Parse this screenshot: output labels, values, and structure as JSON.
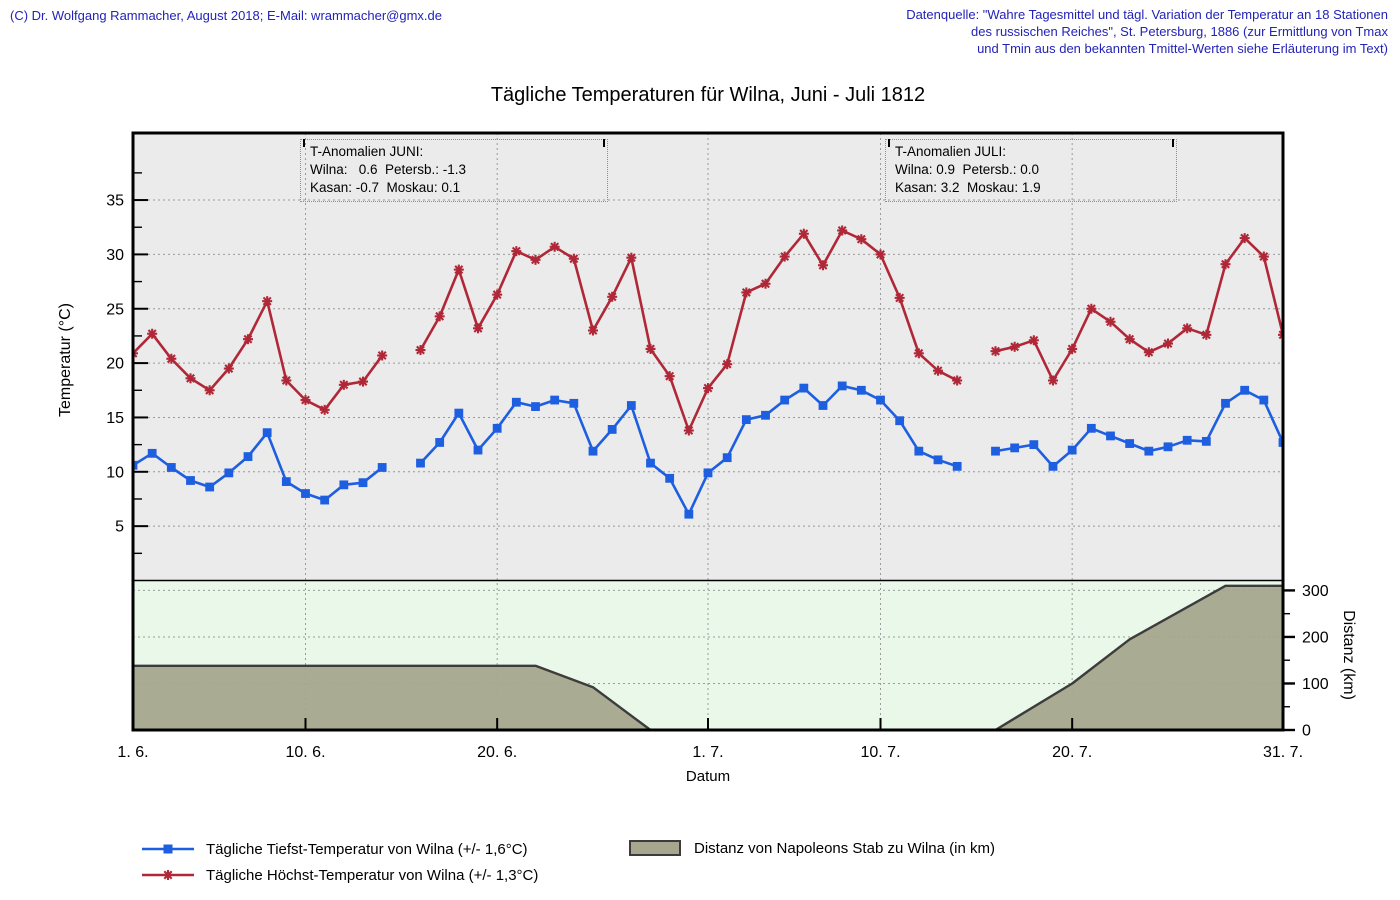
{
  "header": {
    "left": "(C) Dr. Wolfgang Rammacher, August 2018;  E-Mail: wrammacher@gmx.de",
    "right_lines": [
      "Datenquelle: \"Wahre Tagesmittel und tägl. Variation der Temperatur an 18 Stationen",
      "des russischen Reiches\", St. Petersburg, 1886 (zur Ermittlung von Tmax",
      "und Tmin aus den bekannten Tmittel-Werten siehe Erläuterung im Text)"
    ]
  },
  "colors": {
    "header_text": "#2323b8",
    "plot_bg": "#ebebeb",
    "dist_bg": "#e9f8e9",
    "grid": "#9a9a9a",
    "frame": "#000000",
    "area_edge": "#3c3c3c"
  },
  "annotations": {
    "june": {
      "lines": [
        "T-Anomalien JUNI:",
        "Wilna:   0.6  Petersb.: -1.3",
        "Kasan: -0.7  Moskau: 0.1"
      ]
    },
    "july": {
      "lines": [
        "T-Anomalien JULI:",
        "Wilna: 0.9  Petersb.: 0.0",
        "Kasan: 3.2  Moskau: 1.9"
      ]
    }
  },
  "legend": {
    "tmin": "Tägliche Tiefst-Temperatur von Wilna (+/- 1,6°C)",
    "tmax": "Tägliche Höchst-Temperatur von Wilna (+/- 1,3°C)",
    "dist": "Distanz von Napoleons Stab zu Wilna (in km)"
  },
  "chart_data": {
    "type": "line",
    "title": "Tägliche Temperaturen für Wilna, Juni - Juli 1812",
    "xlabel": "Datum",
    "ylabel": "Temperatur (°C)",
    "y2label": "Distanz (km)",
    "x_unit": "day index, 0 = 1 June 1812, 60 = 31 July 1812",
    "x_ticks": [
      {
        "day": 0,
        "label": "1. 6."
      },
      {
        "day": 9,
        "label": "10. 6."
      },
      {
        "day": 19,
        "label": "20. 6."
      },
      {
        "day": 30,
        "label": "1. 7."
      },
      {
        "day": 39,
        "label": "10. 7."
      },
      {
        "day": 49,
        "label": "20. 7."
      },
      {
        "day": 60,
        "label": "31. 7."
      }
    ],
    "y_ticks": [
      5,
      10,
      15,
      20,
      25,
      30,
      35
    ],
    "y2_ticks": [
      0,
      100,
      200,
      300
    ],
    "ylim": [
      0,
      41.2
    ],
    "y2lim": [
      0,
      321
    ],
    "grid": true,
    "missing_days": [
      "15. 6.",
      "15. 7."
    ],
    "series": [
      {
        "id": "tmin",
        "name": "Tägliche Tiefst-Temperatur von Wilna (+/- 1,6°C)",
        "axis": "y1",
        "color": "#1e5ee0",
        "marker": "square",
        "points": [
          [
            0,
            10.6
          ],
          [
            1,
            11.7
          ],
          [
            2,
            10.4
          ],
          [
            3,
            9.2
          ],
          [
            4,
            8.6
          ],
          [
            5,
            9.9
          ],
          [
            6,
            11.4
          ],
          [
            7,
            13.6
          ],
          [
            8,
            9.1
          ],
          [
            9,
            8.0
          ],
          [
            10,
            7.4
          ],
          [
            11,
            8.8
          ],
          [
            12,
            9.0
          ],
          [
            13,
            10.4
          ],
          [
            15,
            10.8
          ],
          [
            16,
            12.7
          ],
          [
            17,
            15.4
          ],
          [
            18,
            12.0
          ],
          [
            19,
            14.0
          ],
          [
            20,
            16.4
          ],
          [
            21,
            16.0
          ],
          [
            22,
            16.6
          ],
          [
            23,
            16.3
          ],
          [
            24,
            11.9
          ],
          [
            25,
            13.9
          ],
          [
            26,
            16.1
          ],
          [
            27,
            10.8
          ],
          [
            28,
            9.4
          ],
          [
            29,
            6.1
          ],
          [
            30,
            9.9
          ],
          [
            31,
            11.3
          ],
          [
            32,
            14.8
          ],
          [
            33,
            15.2
          ],
          [
            34,
            16.6
          ],
          [
            35,
            17.7
          ],
          [
            36,
            16.1
          ],
          [
            37,
            17.9
          ],
          [
            38,
            17.5
          ],
          [
            39,
            16.6
          ],
          [
            40,
            14.7
          ],
          [
            41,
            11.9
          ],
          [
            42,
            11.1
          ],
          [
            43,
            10.5
          ],
          [
            45,
            11.9
          ],
          [
            46,
            12.2
          ],
          [
            47,
            12.5
          ],
          [
            48,
            10.5
          ],
          [
            49,
            12.0
          ],
          [
            50,
            14.0
          ],
          [
            51,
            13.3
          ],
          [
            52,
            12.6
          ],
          [
            53,
            11.9
          ],
          [
            54,
            12.3
          ],
          [
            55,
            12.9
          ],
          [
            56,
            12.8
          ],
          [
            57,
            16.3
          ],
          [
            58,
            17.5
          ],
          [
            59,
            16.6
          ],
          [
            60,
            12.7
          ]
        ]
      },
      {
        "id": "tmax",
        "name": "Tägliche Höchst-Temperatur von Wilna (+/- 1,3°C)",
        "axis": "y1",
        "color": "#b02838",
        "marker": "star",
        "points": [
          [
            0,
            20.9
          ],
          [
            1,
            22.7
          ],
          [
            2,
            20.4
          ],
          [
            3,
            18.6
          ],
          [
            4,
            17.5
          ],
          [
            5,
            19.5
          ],
          [
            6,
            22.2
          ],
          [
            7,
            25.7
          ],
          [
            8,
            18.4
          ],
          [
            9,
            16.6
          ],
          [
            10,
            15.7
          ],
          [
            11,
            18.0
          ],
          [
            12,
            18.3
          ],
          [
            13,
            20.7
          ],
          [
            15,
            21.2
          ],
          [
            16,
            24.3
          ],
          [
            17,
            28.6
          ],
          [
            18,
            23.2
          ],
          [
            19,
            26.3
          ],
          [
            20,
            30.3
          ],
          [
            21,
            29.5
          ],
          [
            22,
            30.7
          ],
          [
            23,
            29.6
          ],
          [
            24,
            23.0
          ],
          [
            25,
            26.1
          ],
          [
            26,
            29.7
          ],
          [
            27,
            21.3
          ],
          [
            28,
            18.8
          ],
          [
            29,
            13.8
          ],
          [
            30,
            17.7
          ],
          [
            31,
            19.9
          ],
          [
            32,
            26.5
          ],
          [
            33,
            27.3
          ],
          [
            34,
            29.8
          ],
          [
            35,
            31.9
          ],
          [
            36,
            29.0
          ],
          [
            37,
            32.2
          ],
          [
            38,
            31.4
          ],
          [
            39,
            30.0
          ],
          [
            40,
            26.0
          ],
          [
            41,
            20.9
          ],
          [
            42,
            19.3
          ],
          [
            43,
            18.4
          ],
          [
            45,
            21.1
          ],
          [
            46,
            21.5
          ],
          [
            47,
            22.1
          ],
          [
            48,
            18.4
          ],
          [
            49,
            21.3
          ],
          [
            50,
            25.0
          ],
          [
            51,
            23.8
          ],
          [
            52,
            22.2
          ],
          [
            53,
            21.0
          ],
          [
            54,
            21.8
          ],
          [
            55,
            23.2
          ],
          [
            56,
            22.6
          ],
          [
            57,
            29.1
          ],
          [
            58,
            31.5
          ],
          [
            59,
            29.8
          ],
          [
            60,
            22.6
          ]
        ]
      },
      {
        "id": "dist",
        "name": "Distanz von Napoleons Stab zu Wilna (in km)",
        "type": "area",
        "axis": "y2",
        "color": "#a7a68e",
        "points": [
          [
            0,
            138
          ],
          [
            21,
            138
          ],
          [
            24,
            92
          ],
          [
            27,
            0
          ],
          [
            45,
            0
          ],
          [
            49,
            100
          ],
          [
            52,
            195
          ],
          [
            57,
            310
          ],
          [
            60,
            310
          ]
        ]
      }
    ]
  }
}
